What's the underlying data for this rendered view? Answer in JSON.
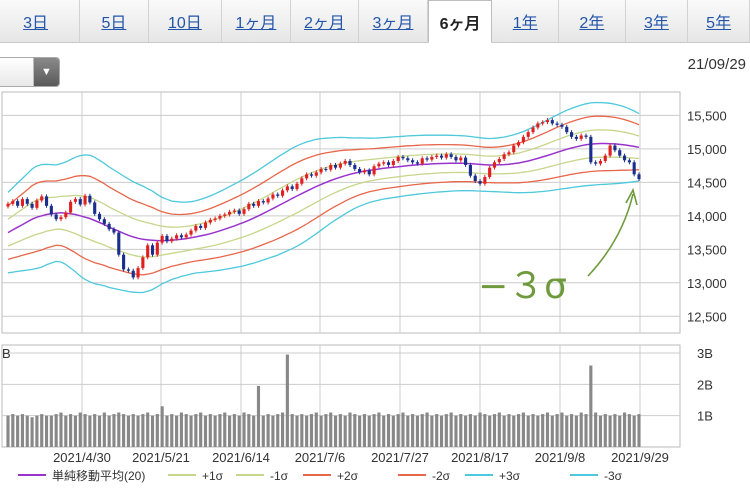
{
  "tabs": [
    {
      "label": "3日",
      "active": false
    },
    {
      "label": "5日",
      "active": false
    },
    {
      "label": "10日",
      "active": false
    },
    {
      "label": "1ヶ月",
      "active": false
    },
    {
      "label": "2ヶ月",
      "active": false
    },
    {
      "label": "3ヶ月",
      "active": false
    },
    {
      "label": "6ヶ月",
      "active": true
    },
    {
      "label": "1年",
      "active": false
    },
    {
      "label": "2年",
      "active": false
    },
    {
      "label": "3年",
      "active": false
    },
    {
      "label": "5年",
      "active": false
    }
  ],
  "as_of_date": "21/09/29",
  "selector": {
    "arrow_icon": "chevron-down-icon"
  },
  "annotation": "−３σ",
  "colors": {
    "sma": "#9933cc",
    "p1": "#c6d68a",
    "m1": "#c6d68a",
    "p2": "#e8664a",
    "m2": "#e8664a",
    "p3": "#4dc8dc",
    "m3": "#4dc8dc",
    "up": "#e02020",
    "down": "#1a2f8c",
    "volume": "#888888",
    "grid": "#cccccc",
    "annotation": "#6e9a3c"
  },
  "chart_data": [
    {
      "type": "candlestick",
      "price_axis": {
        "ylim": [
          12250,
          15850
        ],
        "ticks": [
          12500,
          13000,
          13500,
          14000,
          14500,
          15000,
          15500
        ],
        "tick_labels": [
          "12,500",
          "13,000",
          "13,500",
          "14,000",
          "14,500",
          "15,000",
          "15,500"
        ]
      },
      "date_axis_ticks": [
        "2021/4/30",
        "2021/5/21",
        "2021/6/14",
        "2021/7/6",
        "2021/7/27",
        "2021/8/17",
        "2021/9/8",
        "2021/9/29"
      ],
      "legend": [
        {
          "key": "sma",
          "label": "単純移動平均(20)"
        },
        {
          "key": "p1",
          "label": "+1σ"
        },
        {
          "key": "m1",
          "label": "-1σ"
        },
        {
          "key": "p2",
          "label": "+2σ"
        },
        {
          "key": "m2",
          "label": "-2σ"
        },
        {
          "key": "p3",
          "label": "+3σ"
        },
        {
          "key": "m3",
          "label": "-3σ"
        }
      ],
      "close": [
        14180,
        14220,
        14150,
        14250,
        14180,
        14120,
        14230,
        14290,
        14150,
        14020,
        13950,
        13980,
        14050,
        14210,
        14250,
        14170,
        14300,
        14200,
        14030,
        13950,
        13880,
        13800,
        13750,
        13420,
        13200,
        13180,
        13080,
        13220,
        13380,
        13560,
        13420,
        13600,
        13700,
        13620,
        13660,
        13710,
        13680,
        13720,
        13780,
        13850,
        13820,
        13900,
        13940,
        13960,
        14000,
        14020,
        14060,
        14080,
        14030,
        14100,
        14180,
        14150,
        14220,
        14200,
        14260,
        14320,
        14300,
        14380,
        14440,
        14400,
        14480,
        14560,
        14620,
        14600,
        14650,
        14700,
        14690,
        14760,
        14720,
        14780,
        14820,
        14760,
        14700,
        14650,
        14680,
        14620,
        14740,
        14780,
        14800,
        14760,
        14820,
        14880,
        14860,
        14830,
        14800,
        14780,
        14860,
        14840,
        14880,
        14900,
        14870,
        14920,
        14880,
        14830,
        14870,
        14760,
        14600,
        14520,
        14480,
        14580,
        14720,
        14800,
        14850,
        14920,
        14950,
        15050,
        15100,
        15180,
        15250,
        15320,
        15380,
        15400,
        15430,
        15380,
        15360,
        15330,
        15250,
        15180,
        15150,
        15200,
        15180,
        14800,
        14780,
        14820,
        14900,
        15050,
        14980,
        14900,
        14830,
        14800,
        14620,
        14550
      ],
      "sma_20": [
        13750,
        13790,
        13830,
        13870,
        13910,
        13950,
        13980,
        14000,
        14020,
        14030,
        14040,
        14045,
        14040,
        14030,
        14020,
        14000,
        13980,
        13960,
        13930,
        13900,
        13870,
        13830,
        13800,
        13770,
        13740,
        13710,
        13685,
        13665,
        13650,
        13640,
        13635,
        13630,
        13630,
        13632,
        13636,
        13642,
        13650,
        13660,
        13672,
        13686,
        13700,
        13716,
        13734,
        13754,
        13776,
        13800,
        13824,
        13850,
        13876,
        13904,
        13934,
        13966,
        14000,
        14036,
        14072,
        14108,
        14146,
        14184,
        14222,
        14260,
        14296,
        14332,
        14368,
        14404,
        14438,
        14470,
        14500,
        14528,
        14554,
        14578,
        14600,
        14620,
        14638,
        14654,
        14668,
        14680,
        14690,
        14700,
        14710,
        14718,
        14726,
        14734,
        14742,
        14750,
        14756,
        14762,
        14768,
        14772,
        14776,
        14780,
        14782,
        14784,
        14786,
        14786,
        14786,
        14784,
        14780,
        14774,
        14768,
        14762,
        14760,
        14760,
        14762,
        14766,
        14772,
        14780,
        14790,
        14804,
        14820,
        14838,
        14858,
        14880,
        14902,
        14926,
        14950,
        14972,
        14994,
        15014,
        15032,
        15048,
        15062,
        15072,
        15078,
        15080,
        15080,
        15078,
        15074,
        15068,
        15060,
        15050,
        15038,
        15024
      ],
      "sigma": [
        200,
        210,
        220,
        230,
        240,
        250,
        255,
        255,
        250,
        245,
        240,
        245,
        255,
        270,
        285,
        300,
        310,
        315,
        315,
        310,
        305,
        300,
        295,
        290,
        285,
        280,
        275,
        270,
        265,
        255,
        245,
        230,
        215,
        205,
        195,
        190,
        185,
        182,
        180,
        180,
        182,
        185,
        188,
        192,
        196,
        200,
        204,
        208,
        212,
        216,
        220,
        224,
        228,
        232,
        236,
        240,
        244,
        246,
        248,
        250,
        250,
        248,
        245,
        240,
        235,
        228,
        220,
        212,
        205,
        198,
        190,
        182,
        175,
        170,
        165,
        160,
        157,
        155,
        153,
        152,
        151,
        150,
        149,
        148,
        147,
        146,
        145,
        144,
        143,
        142,
        141,
        140,
        139,
        138,
        137,
        136,
        135,
        134,
        133,
        132,
        132,
        133,
        135,
        137,
        140,
        144,
        148,
        152,
        157,
        162,
        167,
        172,
        177,
        182,
        186,
        190,
        194,
        197,
        200,
        202,
        204,
        205,
        205,
        204,
        203,
        201,
        198,
        194,
        189,
        183,
        176,
        168
      ],
      "volume_axis": {
        "ylim": [
          0,
          3.0
        ],
        "ticks": [
          1,
          2,
          3
        ],
        "tick_labels": [
          "1B",
          "2B",
          "3B"
        ],
        "left_label": "B"
      },
      "volume_B": [
        1.0,
        1.05,
        1.0,
        1.05,
        1.0,
        0.95,
        1.0,
        1.05,
        1.0,
        1.0,
        1.05,
        1.1,
        1.0,
        1.05,
        1.0,
        1.1,
        1.05,
        1.0,
        1.05,
        1.0,
        1.1,
        1.0,
        1.05,
        1.1,
        1.05,
        1.0,
        1.05,
        1.0,
        1.05,
        1.1,
        1.0,
        1.05,
        1.3,
        1.0,
        1.05,
        1.0,
        1.1,
        1.05,
        1.0,
        1.05,
        1.1,
        1.0,
        1.05,
        1.0,
        1.05,
        1.1,
        1.0,
        1.05,
        1.0,
        1.1,
        1.05,
        1.0,
        1.95,
        1.0,
        1.05,
        1.0,
        1.05,
        1.1,
        2.95,
        1.05,
        1.0,
        1.05,
        1.0,
        1.05,
        1.1,
        1.0,
        1.05,
        1.1,
        1.0,
        1.05,
        1.0,
        1.1,
        1.05,
        1.0,
        1.05,
        1.0,
        1.05,
        1.1,
        1.0,
        1.05,
        1.0,
        1.05,
        1.1,
        1.0,
        1.05,
        1.0,
        1.05,
        1.1,
        1.0,
        1.05,
        1.0,
        1.05,
        1.1,
        1.0,
        1.05,
        1.0,
        1.05,
        1.0,
        1.1,
        1.05,
        1.0,
        1.05,
        1.1,
        1.0,
        1.05,
        1.0,
        1.05,
        1.1,
        1.0,
        1.05,
        1.0,
        1.05,
        1.1,
        1.0,
        1.05,
        1.1,
        1.0,
        1.05,
        1.0,
        1.1,
        1.05,
        2.6,
        1.1,
        1.0,
        1.05,
        1.0,
        1.05,
        1.0,
        1.1,
        1.05,
        1.0,
        1.05
      ]
    }
  ]
}
